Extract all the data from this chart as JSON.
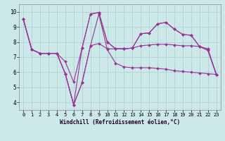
{
  "xlabel": "Windchill (Refroidissement éolien,°C)",
  "background_color": "#cce8e8",
  "line_color": "#993399",
  "xlim": [
    -0.5,
    23.5
  ],
  "ylim": [
    3.5,
    10.5
  ],
  "yticks": [
    4,
    5,
    6,
    7,
    8,
    9,
    10
  ],
  "xticks": [
    0,
    1,
    2,
    3,
    4,
    5,
    6,
    7,
    8,
    9,
    10,
    11,
    12,
    13,
    14,
    15,
    16,
    17,
    18,
    19,
    20,
    21,
    22,
    23
  ],
  "series": [
    [
      9.5,
      7.5,
      7.25,
      7.25,
      7.25,
      5.9,
      3.85,
      5.3,
      7.75,
      9.85,
      7.5,
      6.6,
      6.35,
      6.3,
      6.3,
      6.3,
      6.25,
      6.2,
      6.1,
      6.05,
      6.0,
      5.95,
      5.9,
      5.85
    ],
    [
      9.5,
      7.5,
      7.25,
      7.25,
      7.25,
      6.7,
      5.35,
      7.6,
      9.85,
      9.95,
      8.0,
      7.55,
      7.55,
      7.6,
      8.55,
      8.6,
      9.2,
      9.3,
      8.85,
      8.5,
      8.45,
      7.7,
      7.45,
      5.85
    ],
    [
      9.5,
      7.5,
      7.25,
      7.25,
      7.25,
      5.9,
      3.85,
      7.6,
      9.85,
      9.95,
      8.0,
      7.55,
      7.55,
      7.6,
      8.55,
      8.6,
      9.2,
      9.3,
      8.85,
      8.5,
      8.45,
      7.7,
      7.45,
      5.85
    ],
    [
      9.5,
      7.5,
      7.25,
      7.25,
      7.25,
      5.9,
      3.85,
      5.3,
      7.75,
      7.9,
      7.55,
      7.55,
      7.55,
      7.6,
      7.75,
      7.8,
      7.85,
      7.85,
      7.8,
      7.75,
      7.75,
      7.7,
      7.55,
      5.85
    ]
  ],
  "grid_color": "#aacccc",
  "xlabel_fontsize": 5.5,
  "tick_fontsize": 5.0
}
